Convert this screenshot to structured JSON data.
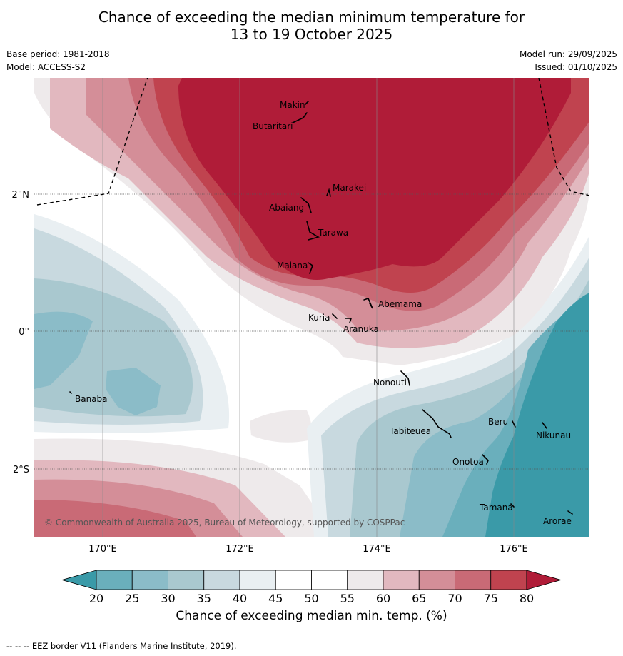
{
  "title_line1": "Chance of exceeding the median minimum temperature for",
  "title_line2": "13 to 19 October 2025",
  "base_period": "Base period: 1981-2018",
  "model": "Model: ACCESS-S2",
  "model_run": "Model run: 29/09/2025",
  "issued": "Issued: 01/10/2025",
  "copyright": "© Commonwealth of Australia 2025, Bureau of Meteorology, supported by COSPPac",
  "axes": {
    "lon_labels": [
      "170°E",
      "172°E",
      "174°E",
      "176°E"
    ],
    "lat_labels": [
      "2°N",
      "0°",
      "2°S"
    ]
  },
  "places": [
    {
      "name": "Makin"
    },
    {
      "name": "Butaritari"
    },
    {
      "name": "Marakei"
    },
    {
      "name": "Abaiang"
    },
    {
      "name": "Tarawa"
    },
    {
      "name": "Maiana"
    },
    {
      "name": "Abemama"
    },
    {
      "name": "Kuria"
    },
    {
      "name": "Aranuka"
    },
    {
      "name": "Banaba"
    },
    {
      "name": "Nonouti"
    },
    {
      "name": "Tabiteuea"
    },
    {
      "name": "Beru"
    },
    {
      "name": "Nikunau"
    },
    {
      "name": "Onotoa"
    },
    {
      "name": "Tamana"
    },
    {
      "name": "Arorae"
    }
  ],
  "colorbar": {
    "title": "Chance of exceeding median min. temp. (%)",
    "ticks": [
      "20",
      "25",
      "30",
      "35",
      "40",
      "45",
      "50",
      "55",
      "60",
      "65",
      "70",
      "75",
      "80"
    ],
    "colors": [
      "#3a9aa8",
      "#6aafbc",
      "#8bbcc8",
      "#a9c8cf",
      "#c8d9df",
      "#e9eff2",
      "#ffffff",
      "#ffffff",
      "#eeeaeb",
      "#e2b8bf",
      "#d48e98",
      "#c96a76",
      "#c0434f",
      "#b01c38"
    ]
  },
  "footer": "--  --  -- EEZ border V11 (Flanders Marine Institute, 2019)."
}
